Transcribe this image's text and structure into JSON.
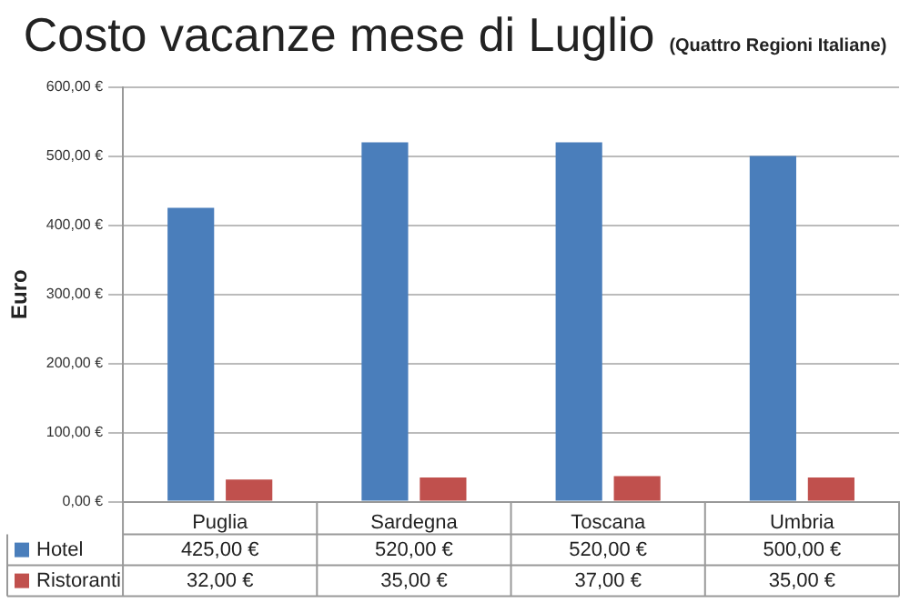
{
  "chart_data": {
    "type": "bar",
    "title": "Costo vacanze mese di Luglio",
    "subtitle": "(Quattro Regioni Italiane)",
    "ylabel": "Euro",
    "categories": [
      "Puglia",
      "Sardegna",
      "Toscana",
      "Umbria"
    ],
    "series": [
      {
        "name": "Hotel",
        "color": "#4a7ebb",
        "values": [
          425,
          520,
          520,
          500
        ],
        "value_labels": [
          "425,00 €",
          "520,00 €",
          "520,00 €",
          "500,00 €"
        ]
      },
      {
        "name": "Ristoranti",
        "color": "#c0504d",
        "values": [
          32,
          35,
          37,
          35
        ],
        "value_labels": [
          "32,00 €",
          "35,00 €",
          "37,00 €",
          "35,00 €"
        ]
      }
    ],
    "ylim": [
      0,
      600
    ],
    "yticks": [
      {
        "value": 0,
        "label": "0,00 €"
      },
      {
        "value": 100,
        "label": "100,00 €"
      },
      {
        "value": 200,
        "label": "200,00 €"
      },
      {
        "value": 300,
        "label": "300,00 €"
      },
      {
        "value": 400,
        "label": "400,00 €"
      },
      {
        "value": 500,
        "label": "500,00 €"
      },
      {
        "value": 600,
        "label": "600,00 €"
      }
    ],
    "grid": "y",
    "legend": "bottom"
  }
}
